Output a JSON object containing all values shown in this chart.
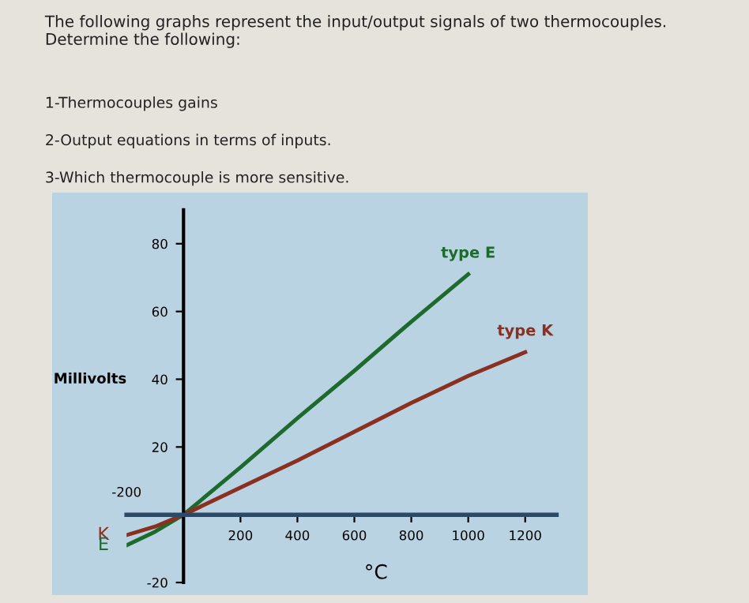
{
  "chart_data": {
    "type": "line",
    "title": "The following graphs represent the input/output signals of two thermocouples. Determine the following:",
    "annotations": [
      "1-Thermocouples gains",
      "2-Output equations in terms of inputs.",
      "3-Which thermocouple is more sensitive.",
      "K",
      "E",
      "-200"
    ],
    "xlabel": "°C",
    "ylabel": "Millivolts",
    "x": [
      -200,
      -100,
      0,
      200,
      400,
      600,
      800,
      1000
    ],
    "series": [
      {
        "name": "type E",
        "color": "#1d6b2c",
        "values": [
          -9,
          -5,
          0,
          14,
          28.5,
          42.5,
          57,
          71
        ]
      },
      {
        "name": "type K",
        "color": "#8a3020",
        "x": [
          -200,
          -100,
          0,
          200,
          400,
          600,
          800,
          1000,
          1200
        ],
        "values": [
          -6,
          -3.5,
          0,
          8,
          16,
          24.5,
          33,
          41,
          48
        ]
      }
    ],
    "xlim": [
      -200,
      1310
    ],
    "ylim": [
      -20,
      90
    ],
    "xticks": [
      200,
      400,
      600,
      800,
      1000,
      1200
    ],
    "yticks": [
      -20,
      20,
      40,
      60,
      80
    ],
    "grid": false,
    "legend": false,
    "marker": "none",
    "line_style": "solid"
  }
}
